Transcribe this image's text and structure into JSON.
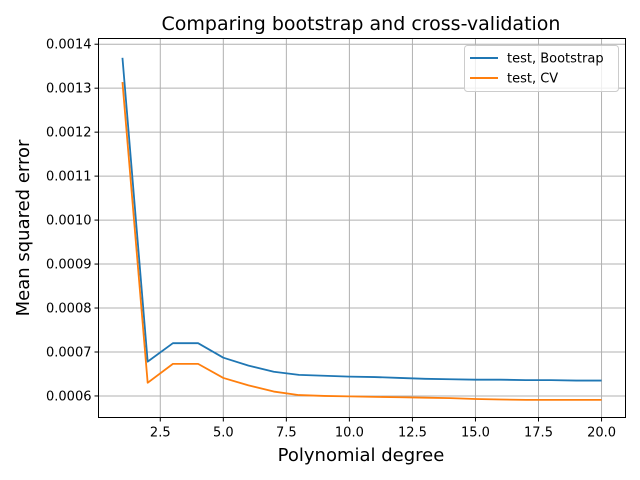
{
  "chart_data": {
    "type": "line",
    "title": "Comparing bootstrap and cross-validation",
    "xlabel": "Polynomial degree",
    "ylabel": "Mean squared error",
    "xlim": [
      0.05,
      20.95
    ],
    "ylim": [
      0.000551,
      0.001413
    ],
    "xticks": [
      2.5,
      5.0,
      7.5,
      10.0,
      12.5,
      15.0,
      17.5,
      20.0
    ],
    "xtick_labels": [
      "2.5",
      "5.0",
      "7.5",
      "10.0",
      "12.5",
      "15.0",
      "17.5",
      "20.0"
    ],
    "yticks": [
      0.0006,
      0.0007,
      0.0008,
      0.0009,
      0.001,
      0.0011,
      0.0012,
      0.0013,
      0.0014
    ],
    "ytick_labels": [
      "0.0006",
      "0.0007",
      "0.0008",
      "0.0009",
      "0.0010",
      "0.0011",
      "0.0012",
      "0.0013",
      "0.0014"
    ],
    "grid": true,
    "legend_position": "top-right",
    "x": [
      1,
      2,
      3,
      4,
      5,
      6,
      7,
      8,
      9,
      10,
      11,
      12,
      13,
      14,
      15,
      16,
      17,
      18,
      19,
      20
    ],
    "series": [
      {
        "name": "test, Bootstrap",
        "color": "#1f77b4",
        "values": [
          0.001369,
          0.000678,
          0.00072,
          0.00072,
          0.000687,
          0.000669,
          0.000655,
          0.000648,
          0.000646,
          0.000644,
          0.000643,
          0.000641,
          0.000639,
          0.000638,
          0.000637,
          0.000637,
          0.000636,
          0.000636,
          0.000635,
          0.000635
        ]
      },
      {
        "name": "test, CV",
        "color": "#ff7f0e",
        "values": [
          0.001314,
          0.00063,
          0.000673,
          0.000673,
          0.000641,
          0.000624,
          0.00061,
          0.000602,
          0.0006,
          0.000599,
          0.000598,
          0.000597,
          0.000596,
          0.000595,
          0.000593,
          0.000592,
          0.000591,
          0.000591,
          0.000591,
          0.000591
        ]
      }
    ]
  }
}
